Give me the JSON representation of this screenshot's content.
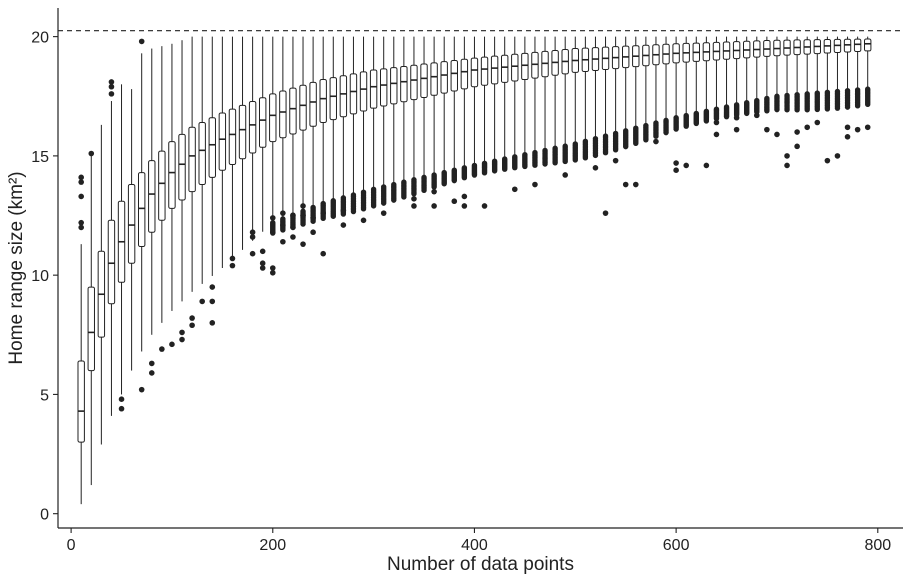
{
  "chart_data": {
    "type": "boxplot",
    "title": "",
    "xlabel": "Number of data points",
    "ylabel": "Home range size (km²)",
    "xlim": [
      -13,
      825
    ],
    "ylim": [
      -0.6,
      21.2
    ],
    "x_ticks": [
      0,
      200,
      400,
      600,
      800
    ],
    "y_ticks": [
      0,
      5,
      10,
      15,
      20
    ],
    "reference_line": {
      "y": 20.25,
      "style": "dashed"
    },
    "grid": false,
    "legend": "none",
    "colors": {
      "box_fill": "#ffffff",
      "stroke": "#222222",
      "outlier": "#222222"
    },
    "anchors": [
      {
        "x": 10,
        "wlo": 0.4,
        "q1": 3.0,
        "med": 4.3,
        "q3": 6.4,
        "whi": 11.3
      },
      {
        "x": 20,
        "wlo": 1.2,
        "q1": 6.0,
        "med": 7.6,
        "q3": 9.5,
        "whi": 15.1
      },
      {
        "x": 30,
        "wlo": 2.9,
        "q1": 7.4,
        "med": 9.2,
        "q3": 11.0,
        "whi": 16.3
      },
      {
        "x": 40,
        "wlo": 4.1,
        "q1": 8.8,
        "med": 10.5,
        "q3": 12.3,
        "whi": 17.3
      },
      {
        "x": 50,
        "wlo": 5.0,
        "q1": 9.7,
        "med": 11.4,
        "q3": 13.1,
        "whi": 18.0
      },
      {
        "x": 60,
        "wlo": 6.0,
        "q1": 10.5,
        "med": 12.1,
        "q3": 13.8,
        "whi": 17.8
      },
      {
        "x": 70,
        "wlo": 6.8,
        "q1": 11.2,
        "med": 12.8,
        "q3": 14.3,
        "whi": 19.3
      },
      {
        "x": 80,
        "wlo": 7.5,
        "q1": 11.8,
        "med": 13.4,
        "q3": 14.8,
        "whi": 19.5
      },
      {
        "x": 100,
        "wlo": 8.5,
        "q1": 12.8,
        "med": 14.3,
        "q3": 15.6,
        "whi": 19.7
      },
      {
        "x": 120,
        "wlo": 9.3,
        "q1": 13.5,
        "med": 15.0,
        "q3": 16.2,
        "whi": 20.0
      },
      {
        "x": 150,
        "wlo": 10.3,
        "q1": 14.4,
        "med": 15.7,
        "q3": 16.8,
        "whi": 20.0
      },
      {
        "x": 200,
        "wlo": 12.2,
        "q1": 15.6,
        "med": 16.7,
        "q3": 17.6,
        "whi": 20.0
      },
      {
        "x": 250,
        "wlo": 13.0,
        "q1": 16.4,
        "med": 17.4,
        "q3": 18.2,
        "whi": 20.0
      },
      {
        "x": 300,
        "wlo": 13.6,
        "q1": 17.0,
        "med": 17.9,
        "q3": 18.6,
        "whi": 20.0
      },
      {
        "x": 400,
        "wlo": 14.6,
        "q1": 17.9,
        "med": 18.6,
        "q3": 19.1,
        "whi": 20.0
      },
      {
        "x": 500,
        "wlo": 15.5,
        "q1": 18.5,
        "med": 19.0,
        "q3": 19.5,
        "whi": 20.0
      },
      {
        "x": 600,
        "wlo": 16.6,
        "q1": 18.9,
        "med": 19.3,
        "q3": 19.7,
        "whi": 20.0
      },
      {
        "x": 700,
        "wlo": 17.5,
        "q1": 19.2,
        "med": 19.5,
        "q3": 19.85,
        "whi": 20.0
      },
      {
        "x": 790,
        "wlo": 17.8,
        "q1": 19.4,
        "med": 19.7,
        "q3": 19.9,
        "whi": 20.0
      }
    ],
    "x_points": [
      10,
      20,
      30,
      40,
      50,
      60,
      70,
      80,
      90,
      100,
      110,
      120,
      130,
      140,
      150,
      160,
      170,
      180,
      190,
      200,
      210,
      220,
      230,
      240,
      250,
      260,
      270,
      280,
      290,
      300,
      310,
      320,
      330,
      340,
      350,
      360,
      370,
      380,
      390,
      400,
      410,
      420,
      430,
      440,
      450,
      460,
      470,
      480,
      490,
      500,
      510,
      520,
      530,
      540,
      550,
      560,
      570,
      580,
      590,
      600,
      610,
      620,
      630,
      640,
      650,
      660,
      670,
      680,
      690,
      700,
      710,
      720,
      730,
      740,
      750,
      760,
      770,
      780,
      790
    ],
    "outliers": [
      {
        "x": 10,
        "values": [
          12.0,
          12.2,
          13.3,
          13.9,
          14.1
        ]
      },
      {
        "x": 20,
        "values": [
          15.1
        ]
      },
      {
        "x": 40,
        "values": [
          17.6,
          17.9,
          18.1
        ]
      },
      {
        "x": 50,
        "values": [
          4.4,
          4.8
        ]
      },
      {
        "x": 70,
        "values": [
          5.2,
          19.8
        ]
      },
      {
        "x": 80,
        "values": [
          5.9,
          6.3
        ]
      },
      {
        "x": 90,
        "values": [
          6.9
        ]
      },
      {
        "x": 100,
        "values": [
          7.1
        ]
      },
      {
        "x": 110,
        "values": [
          7.3,
          7.6
        ]
      },
      {
        "x": 120,
        "values": [
          7.9,
          8.2
        ]
      },
      {
        "x": 130,
        "values": [
          8.9
        ]
      },
      {
        "x": 140,
        "values": [
          8.0,
          8.9,
          9.5
        ]
      },
      {
        "x": 160,
        "values": [
          10.4,
          10.7
        ]
      },
      {
        "x": 180,
        "values": [
          10.9,
          11.6,
          11.8
        ]
      },
      {
        "x": 190,
        "values": [
          10.3,
          10.5,
          11.0
        ]
      },
      {
        "x": 200,
        "values": [
          10.1,
          10.3,
          11.8,
          12.4
        ]
      },
      {
        "x": 210,
        "values": [
          11.4,
          12.1,
          12.6
        ]
      },
      {
        "x": 220,
        "values": [
          11.6,
          12.0,
          12.5
        ]
      },
      {
        "x": 230,
        "values": [
          11.3,
          12.5,
          12.9
        ]
      },
      {
        "x": 240,
        "values": [
          11.8,
          12.4
        ]
      },
      {
        "x": 250,
        "values": [
          10.9,
          12.6
        ]
      },
      {
        "x": 270,
        "values": [
          12.1,
          12.7
        ]
      },
      {
        "x": 290,
        "values": [
          12.3
        ]
      },
      {
        "x": 310,
        "values": [
          12.6
        ]
      },
      {
        "x": 340,
        "values": [
          12.9,
          13.2
        ]
      },
      {
        "x": 360,
        "values": [
          12.9,
          13.5
        ]
      },
      {
        "x": 380,
        "values": [
          13.1
        ]
      },
      {
        "x": 390,
        "values": [
          12.9,
          13.3
        ]
      },
      {
        "x": 410,
        "values": [
          12.9
        ]
      },
      {
        "x": 440,
        "values": [
          13.6
        ]
      },
      {
        "x": 460,
        "values": [
          13.8
        ]
      },
      {
        "x": 490,
        "values": [
          14.2
        ]
      },
      {
        "x": 520,
        "values": [
          14.5
        ]
      },
      {
        "x": 530,
        "values": [
          12.6
        ]
      },
      {
        "x": 540,
        "values": [
          14.8
        ]
      },
      {
        "x": 550,
        "values": [
          13.8
        ]
      },
      {
        "x": 560,
        "values": [
          13.8
        ]
      },
      {
        "x": 580,
        "values": [
          15.6
        ]
      },
      {
        "x": 600,
        "values": [
          14.4,
          14.7
        ]
      },
      {
        "x": 610,
        "values": [
          14.6
        ]
      },
      {
        "x": 630,
        "values": [
          14.6
        ]
      },
      {
        "x": 640,
        "values": [
          15.9,
          16.4
        ]
      },
      {
        "x": 660,
        "values": [
          16.1,
          16.6
        ]
      },
      {
        "x": 680,
        "values": [
          16.7
        ]
      },
      {
        "x": 690,
        "values": [
          16.1
        ]
      },
      {
        "x": 700,
        "values": [
          15.9
        ]
      },
      {
        "x": 710,
        "values": [
          14.6,
          15.0
        ]
      },
      {
        "x": 720,
        "values": [
          15.4,
          16.0
        ]
      },
      {
        "x": 730,
        "values": [
          16.2
        ]
      },
      {
        "x": 740,
        "values": [
          16.4
        ]
      },
      {
        "x": 750,
        "values": [
          14.8
        ]
      },
      {
        "x": 760,
        "values": [
          15.0
        ]
      },
      {
        "x": 770,
        "values": [
          15.8,
          16.2
        ]
      },
      {
        "x": 780,
        "values": [
          16.1
        ]
      },
      {
        "x": 790,
        "values": [
          16.2
        ]
      }
    ]
  }
}
